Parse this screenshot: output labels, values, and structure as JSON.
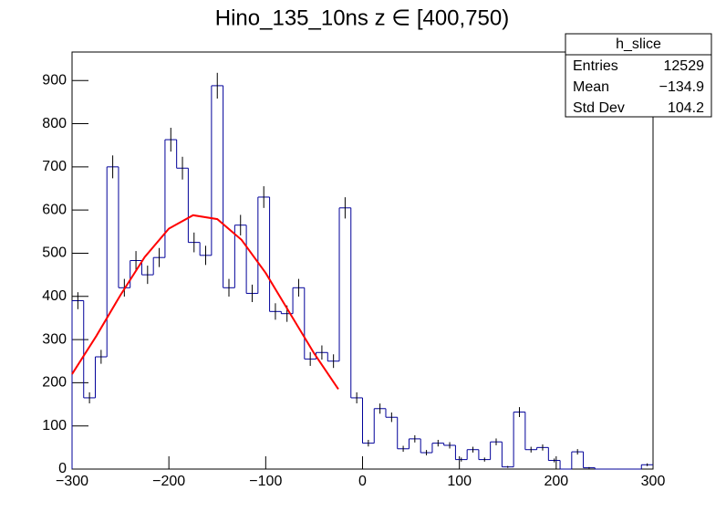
{
  "chart_data": {
    "type": "histogram",
    "title": "Hino_135_10ns z  ∈ [400,750)",
    "bins": [
      -300,
      -288,
      -276,
      -264,
      -252,
      -240,
      -228,
      -216,
      -204,
      -192,
      -180,
      -168,
      -156,
      -144,
      -132,
      -120,
      -108,
      -96,
      -84,
      -72,
      -60,
      -48,
      -36,
      -24,
      -12,
      0,
      12,
      24,
      36,
      48,
      60,
      72,
      84,
      96,
      108,
      120,
      132,
      144,
      156,
      168,
      180,
      192,
      204,
      216,
      228,
      240,
      252,
      264,
      276,
      288,
      300
    ],
    "values": [
      390,
      165,
      260,
      700,
      420,
      483,
      450,
      490,
      763,
      697,
      525,
      495,
      888,
      420,
      565,
      407,
      630,
      365,
      360,
      420,
      255,
      270,
      250,
      605,
      165,
      60,
      140,
      120,
      47,
      70,
      38,
      60,
      55,
      22,
      45,
      22,
      63,
      5,
      132,
      45,
      50,
      20,
      0,
      40,
      3,
      0,
      0,
      0,
      0,
      10
    ],
    "errors": [
      19.7,
      12.8,
      16.1,
      26.5,
      20.5,
      22,
      21.2,
      22.1,
      27.6,
      26.4,
      22.9,
      22.2,
      29.8,
      20.5,
      23.8,
      20.2,
      25.1,
      19.1,
      19,
      20.5,
      16,
      16.4,
      15.8,
      24.6,
      12.8,
      7.7,
      11.8,
      11,
      6.9,
      8.4,
      6.2,
      7.7,
      7.4,
      4.7,
      6.7,
      4.7,
      7.9,
      2.2,
      11.5,
      6.7,
      7.1,
      4.5,
      0,
      6.3,
      1.7,
      0,
      0,
      0,
      0,
      3.2
    ],
    "color": "#000099",
    "fit": {
      "color": "#ff0000",
      "x": [
        -300,
        -275,
        -250,
        -225,
        -200,
        -175,
        -150,
        -125,
        -100,
        -75,
        -50,
        -25
      ],
      "values": [
        220,
        308,
        403,
        491,
        557,
        588,
        579,
        531,
        454,
        361,
        268,
        185
      ]
    },
    "xlim": [
      -300,
      300
    ],
    "xticks": [
      {
        "value": -300,
        "label": "−300"
      },
      {
        "value": -200,
        "label": "−200"
      },
      {
        "value": -100,
        "label": "−100"
      },
      0,
      100,
      200,
      300
    ],
    "ylim": [
      0,
      966
    ],
    "yticks": [
      0,
      100,
      200,
      300,
      400,
      500,
      600,
      700,
      800,
      900
    ],
    "stats": {
      "title": "h_slice",
      "rows": [
        [
          "Entries",
          "12529"
        ],
        [
          "Mean",
          "−134.9"
        ],
        [
          "Std Dev",
          "104.2"
        ]
      ]
    }
  }
}
